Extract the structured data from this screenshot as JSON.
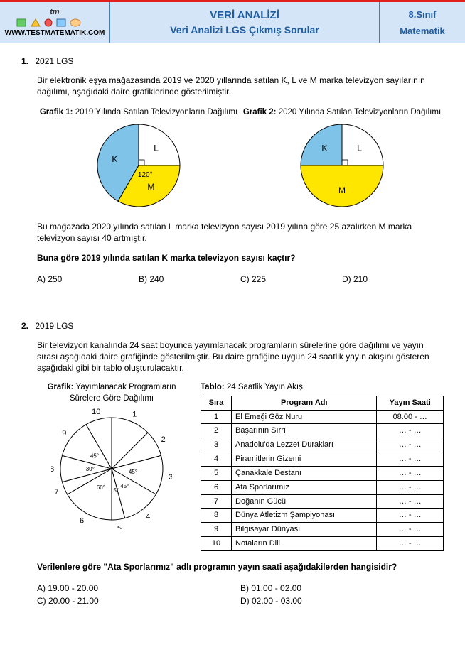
{
  "header": {
    "logo_tm": "tm",
    "logo_url": "WWW.TESTMATEMATIK.COM",
    "title_main": "VERİ ANALİZİ",
    "title_sub": "Veri Analizi LGS Çıkmış Sorular",
    "right_line1": "8.Sınıf",
    "right_line2": "Matematik"
  },
  "q1": {
    "num": "1.",
    "title": "2021 LGS",
    "intro": "Bir elektronik eşya mağazasında 2019 ve 2020 yıllarında satılan K, L ve M marka televizyon sayılarının dağılımı, aşağıdaki daire grafiklerinde gösterilmiştir.",
    "chart1_label_b": "Grafik 1:",
    "chart1_label_t": " 2019 Yılında Satılan Televizyonların Dağılımı",
    "chart2_label_b": "Grafik 2:",
    "chart2_label_t": " 2020 Yılında Satılan Televizyonların Dağılımı",
    "pie1": {
      "slices": [
        {
          "label": "K",
          "angle": 150,
          "start": 90,
          "color": "#7fc4e8"
        },
        {
          "label": "L",
          "angle": 90,
          "start": 0,
          "color": "#ffffff"
        },
        {
          "label": "M",
          "angle": 120,
          "start": 240,
          "color": "#ffe600"
        }
      ],
      "angle_text": "120°",
      "radius": 58
    },
    "pie2": {
      "slices": [
        {
          "label": "K",
          "angle": 90,
          "start": 90,
          "color": "#7fc4e8"
        },
        {
          "label": "L",
          "angle": 90,
          "start": 0,
          "color": "#ffffff"
        },
        {
          "label": "M",
          "angle": 180,
          "start": 180,
          "color": "#ffe600"
        }
      ],
      "radius": 58
    },
    "para2": "Bu mağazada 2020 yılında satılan L marka televizyon sayısı 2019 yılına göre 25 azalırken M marka televizyon sayısı 40 artmıştır.",
    "question": "Buna göre 2019 yılında satılan K marka televizyon sayısı kaçtır?",
    "opts": {
      "a": "A) 250",
      "b": "B) 240",
      "c": "C) 225",
      "d": "D) 210"
    }
  },
  "q2": {
    "num": "2.",
    "title": "2019 LGS",
    "intro": "Bir televizyon kanalında 24 saat boyunca yayımlanacak programların sürelerine göre dağılımı ve yayın sırası aşağıdaki daire grafiğinde gösterilmiştir. Bu daire grafiğine uygun 24 saatlik yayın akışını gösteren aşağıdaki gibi bir tablo oluşturulacaktır.",
    "chart_label_b": "Grafik:",
    "chart_label_t": " Yayımlanacak Programların Sürelere Göre Dağılımı",
    "wedges": [
      {
        "num": "1",
        "angle": 45,
        "angtxt": ""
      },
      {
        "num": "2",
        "angle": 30,
        "angtxt": ""
      },
      {
        "num": "3",
        "angle": 45,
        "angtxt": "45°"
      },
      {
        "num": "4",
        "angle": 45,
        "angtxt": "45°"
      },
      {
        "num": "5",
        "angle": 15,
        "angtxt": "15°"
      },
      {
        "num": "6",
        "angle": 60,
        "angtxt": "60°"
      },
      {
        "num": "7",
        "angle": 15,
        "angtxt": ""
      },
      {
        "num": "8",
        "angle": 30,
        "angtxt": "30°"
      },
      {
        "num": "9",
        "angle": 45,
        "angtxt": "45°"
      },
      {
        "num": "10",
        "angle": 30,
        "angtxt": ""
      }
    ],
    "tbl_title_b": "Tablo:",
    "tbl_title_t": " 24 Saatlik Yayın Akışı",
    "tbl_hdr": {
      "c1": "Sıra",
      "c2": "Program Adı",
      "c3": "Yayın Saati"
    },
    "tbl_rows": [
      {
        "s": "1",
        "p": "El Emeği Göz Nuru",
        "y": "08.00  -  …"
      },
      {
        "s": "2",
        "p": "Başarının Sırrı",
        "y": "…  -  …"
      },
      {
        "s": "3",
        "p": "Anadolu'da Lezzet Durakları",
        "y": "…  -  …"
      },
      {
        "s": "4",
        "p": "Piramitlerin Gizemi",
        "y": "…  -  …"
      },
      {
        "s": "5",
        "p": "Çanakkale Destanı",
        "y": "…  -  …"
      },
      {
        "s": "6",
        "p": "Ata Sporlarımız",
        "y": "…  -  …"
      },
      {
        "s": "7",
        "p": "Doğanın Gücü",
        "y": "…  -  …"
      },
      {
        "s": "8",
        "p": "Dünya Atletizm Şampiyonası",
        "y": "…  -  …"
      },
      {
        "s": "9",
        "p": "Bilgisayar Dünyası",
        "y": "…  -  …"
      },
      {
        "s": "10",
        "p": "Notaların Dili",
        "y": "…  -  …"
      }
    ],
    "question_pre": "Verilenlere göre ",
    "question_quote": "\"Ata Sporlarımız\"",
    "question_post": " adlı programın yayın saati aşağıdakilerden hangisidir?",
    "opts": {
      "a": "A) 19.00 - 20.00",
      "b": "B) 01.00 - 02.00",
      "c": "C) 20.00 - 21.00",
      "d": "D) 02.00 - 03.00"
    }
  }
}
